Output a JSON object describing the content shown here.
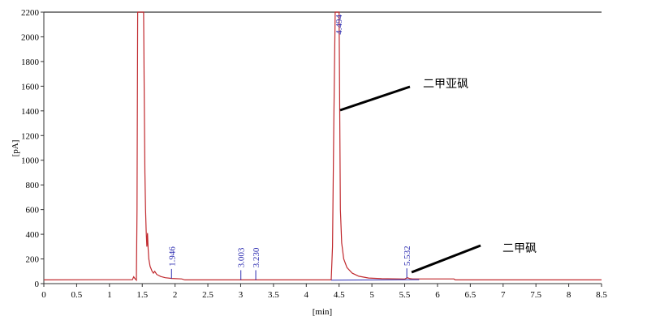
{
  "chart_data": {
    "type": "line",
    "xlabel": "[min]",
    "ylabel": "[pA]",
    "xlim": [
      0,
      8.5
    ],
    "ylim": [
      0,
      2200
    ],
    "xticks": [
      "0",
      "0.5",
      "1",
      "1.5",
      "2",
      "2.5",
      "3",
      "3.5",
      "4",
      "4.5",
      "5",
      "5.5",
      "6",
      "6.5",
      "7",
      "7.5",
      "8",
      "8.5"
    ],
    "yticks": [
      "0",
      "200",
      "400",
      "600",
      "800",
      "1000",
      "1200",
      "1400",
      "1600",
      "1800",
      "2000",
      "2200"
    ],
    "grid": false,
    "trace_color": "#c0282d",
    "label_color": "#2b2bb0",
    "series": [
      {
        "x": [
          0,
          1.35,
          1.37,
          1.39,
          1.41,
          1.42,
          1.43,
          1.52,
          1.53,
          1.54,
          1.55,
          1.56,
          1.57,
          1.58,
          1.59,
          1.6,
          1.62,
          1.65,
          1.67,
          1.69,
          1.72,
          1.78,
          1.85,
          1.95,
          2.1,
          2.15,
          3.0,
          4.38,
          4.4,
          4.42,
          4.44,
          4.5,
          4.51,
          4.52,
          4.54,
          4.57,
          4.62,
          4.7,
          4.8,
          4.95,
          5.15,
          5.5,
          5.54,
          5.58,
          5.62,
          6.25,
          6.27,
          8.5
        ],
        "y": [
          30,
          32,
          55,
          40,
          28,
          600,
          2200,
          2200,
          1500,
          900,
          600,
          420,
          300,
          410,
          280,
          200,
          140,
          100,
          85,
          100,
          75,
          58,
          48,
          42,
          38,
          30,
          30,
          30,
          300,
          1300,
          2200,
          2200,
          1400,
          600,
          330,
          200,
          130,
          85,
          60,
          45,
          40,
          37,
          48,
          40,
          38,
          38,
          30,
          30
        ]
      }
    ],
    "peak_labels": [
      {
        "time": "1.946",
        "x": 1.946,
        "y": 40
      },
      {
        "time": "3.003",
        "x": 3.003,
        "y": 30
      },
      {
        "time": "3.230",
        "x": 3.23,
        "y": 30
      },
      {
        "time": "4.494",
        "x": 4.494,
        "y": 2200
      },
      {
        "time": "5.532",
        "x": 5.532,
        "y": 45
      }
    ],
    "annotations": [
      {
        "text": "二甲亚砜",
        "points_to": [
          4.5,
          1400
        ]
      },
      {
        "text": "二甲砜",
        "points_to": [
          5.6,
          70
        ]
      }
    ]
  }
}
